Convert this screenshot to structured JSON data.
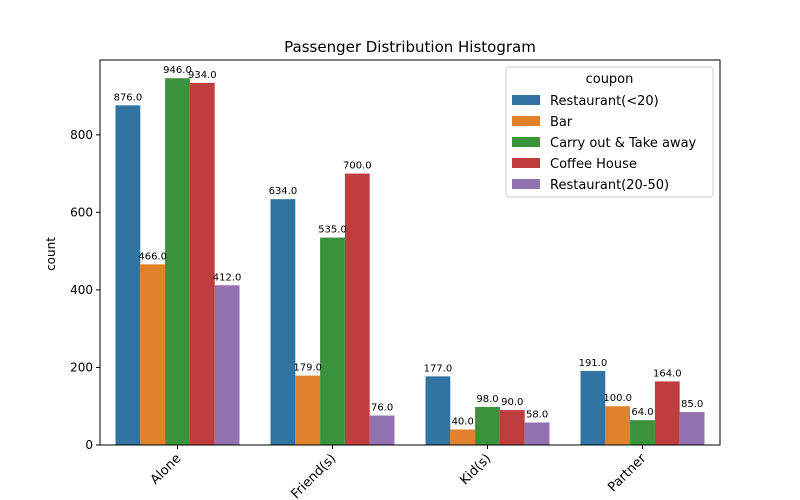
{
  "chart_data": {
    "type": "bar",
    "title": "Passenger Distribution Histogram",
    "xlabel": "",
    "ylabel": "count",
    "categories": [
      "Alone",
      "Friend(s)",
      "Kid(s)",
      "Partner"
    ],
    "ylim": [
      0,
      993
    ],
    "yticks": [
      0,
      200,
      400,
      600,
      800
    ],
    "grid": false,
    "legend": {
      "title": "coupon",
      "position": "top-right"
    },
    "series": [
      {
        "name": "Restaurant(<20)",
        "color": "#3274a1",
        "values": [
          876,
          634,
          177,
          191
        ],
        "labels": [
          "876.0",
          "634.0",
          "177.0",
          "191.0"
        ]
      },
      {
        "name": "Bar",
        "color": "#e1812c",
        "values": [
          466,
          179,
          40,
          100
        ],
        "labels": [
          "466.0",
          "179.0",
          "40.0",
          "100.0"
        ]
      },
      {
        "name": "Carry out & Take away",
        "color": "#3a923a",
        "values": [
          946,
          535,
          98,
          64
        ],
        "labels": [
          "946.0",
          "535.0",
          "98.0",
          "64.0"
        ]
      },
      {
        "name": "Coffee House",
        "color": "#c03d3e",
        "values": [
          934,
          700,
          90,
          164
        ],
        "labels": [
          "934.0",
          "700.0",
          "90.0",
          "164.0"
        ]
      },
      {
        "name": "Restaurant(20-50)",
        "color": "#9372b2",
        "values": [
          412,
          76,
          58,
          85
        ],
        "labels": [
          "412.0",
          "76.0",
          "58.0",
          "85.0"
        ]
      }
    ]
  }
}
